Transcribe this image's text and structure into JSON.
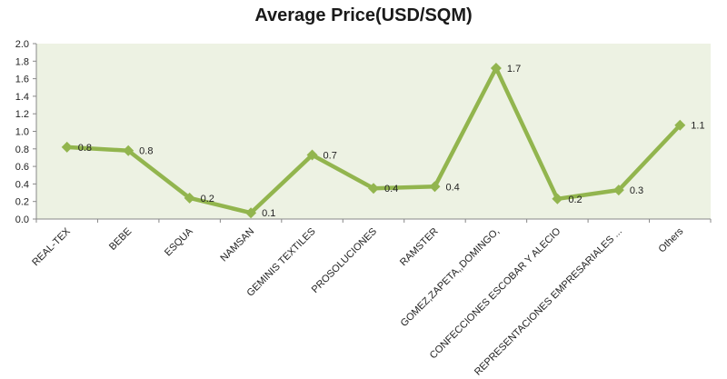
{
  "chart_data": {
    "type": "line",
    "title": "Average Price(USD/SQM)",
    "xlabel": "",
    "ylabel": "",
    "ylim": [
      0,
      2.0
    ],
    "yticks": [
      "0.0",
      "0.2",
      "0.4",
      "0.6",
      "0.8",
      "1.0",
      "1.2",
      "1.4",
      "1.6",
      "1.8",
      "2.0"
    ],
    "grid": false,
    "legend": "none",
    "categories": [
      "REAL-TEX",
      "BEBE",
      "ESQUA",
      "NAMSAN",
      "GEMINIS TEXTILES",
      "PROSOLUCIONES",
      "RAMSTER",
      "GOMEZ,ZAPETA,,DOMINGO,",
      "CONFECCIONES ESCOBAR Y ALECIO",
      "REPRESENTACIONES EMPRESARIALES ...",
      "Others"
    ],
    "values": [
      0.82,
      0.78,
      0.24,
      0.07,
      0.73,
      0.35,
      0.37,
      1.72,
      0.23,
      0.33,
      1.07
    ],
    "data_labels": [
      "0.8",
      "0.8",
      "0.2",
      "0.1",
      "0.7",
      "0.4",
      "0.4",
      "1.7",
      "0.2",
      "0.3",
      "1.1"
    ],
    "colors": {
      "line": "#92B54E",
      "plot_background": "#EDF2E3",
      "axis": "#888888"
    }
  }
}
